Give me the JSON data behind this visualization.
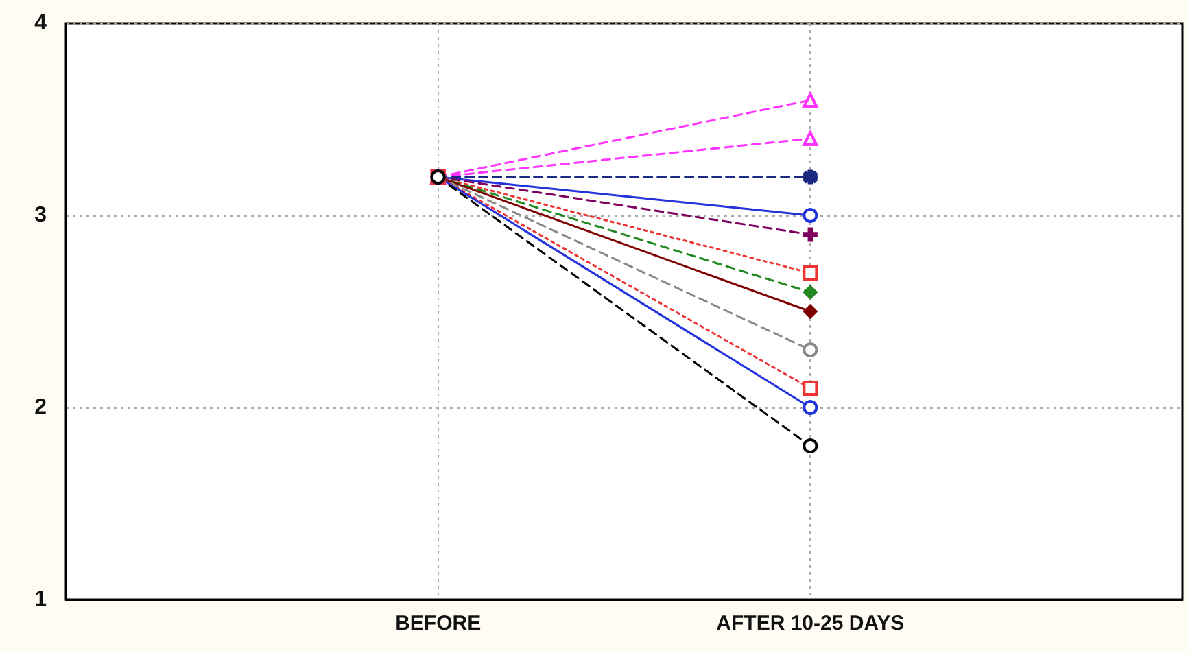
{
  "chart_data": {
    "type": "line",
    "categories": [
      null,
      "BEFORE",
      "AFTER 10-25 DAYS",
      null
    ],
    "ylim": [
      1,
      4
    ],
    "yticks": [
      1,
      2,
      3,
      4
    ],
    "grid": true,
    "series": [
      {
        "color": "#ff33ff",
        "marker": "triangle",
        "line_style": "dashed",
        "values": [
          null,
          3.2,
          3.6,
          null
        ]
      },
      {
        "color": "#ff33ff",
        "marker": "triangle",
        "line_style": "dashed",
        "values": [
          null,
          3.2,
          3.4,
          null
        ]
      },
      {
        "color": "#1a2a80",
        "marker": "star",
        "line_style": "dashed",
        "values": [
          null,
          3.2,
          3.2,
          null
        ]
      },
      {
        "color": "#2233dd",
        "marker": "circle",
        "line_style": "solid",
        "values": [
          null,
          3.2,
          3.0,
          null
        ]
      },
      {
        "color": "#800060",
        "marker": "cross",
        "line_style": "dashed",
        "values": [
          null,
          3.2,
          2.9,
          null
        ]
      },
      {
        "color": "#ee3333",
        "marker": "square",
        "line_style": "dotted",
        "values": [
          null,
          3.2,
          2.7,
          null
        ]
      },
      {
        "color": "#228822",
        "marker": "diamond",
        "line_style": "dashed",
        "values": [
          null,
          3.2,
          2.6,
          null
        ]
      },
      {
        "color": "#800000",
        "marker": "diamond",
        "line_style": "solid",
        "values": [
          null,
          3.2,
          2.5,
          null
        ]
      },
      {
        "color": "#888888",
        "marker": "circle",
        "line_style": "dashed",
        "values": [
          null,
          3.2,
          2.3,
          null
        ]
      },
      {
        "color": "#ee3333",
        "marker": "square",
        "line_style": "dotted",
        "values": [
          null,
          3.2,
          2.1,
          null
        ]
      },
      {
        "color": "#2233dd",
        "marker": "circle",
        "line_style": "solid",
        "values": [
          null,
          3.2,
          2.0,
          null
        ]
      },
      {
        "color": "#000000",
        "marker": "circle",
        "line_style": "dashed",
        "values": [
          null,
          3.2,
          1.8,
          null
        ]
      }
    ]
  }
}
